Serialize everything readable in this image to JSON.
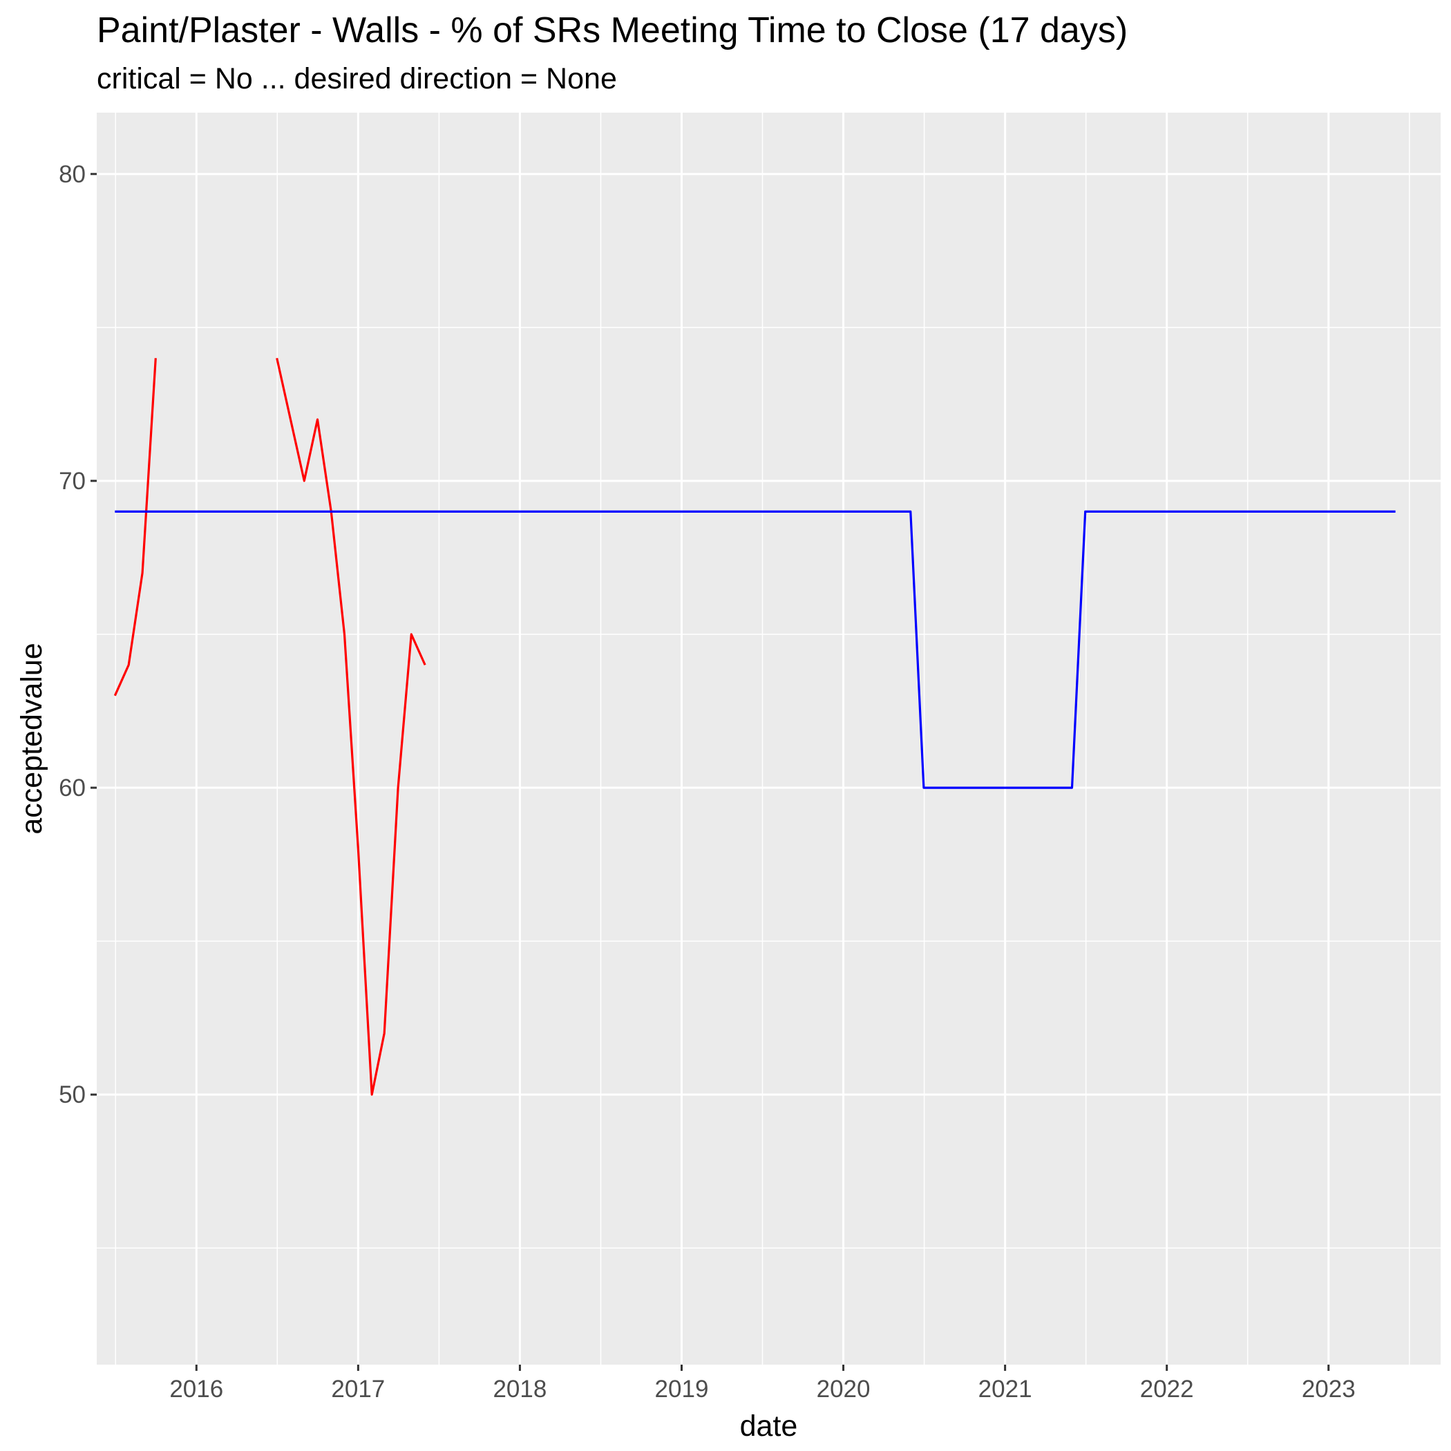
{
  "chart_data": {
    "type": "line",
    "title": "Paint/Plaster - Walls - % of SRs Meeting Time to Close (17 days)",
    "subtitle": "critical = No ... desired direction = None",
    "xlabel": "date",
    "ylabel": "acceptedvalue",
    "x_ticks": [
      "2016",
      "2017",
      "2018",
      "2019",
      "2020",
      "2021",
      "2022",
      "2023"
    ],
    "y_ticks": [
      50,
      60,
      70,
      80
    ],
    "xlim": [
      "2015-05-21",
      "2023-09-11"
    ],
    "ylim": [
      41.2,
      82
    ],
    "grid": true,
    "background": "#EBEBEB",
    "series": [
      {
        "color": "#FF0000",
        "segments": [
          [
            {
              "x": "2015-07-01",
              "y": 63
            },
            {
              "x": "2015-08-01",
              "y": 64
            },
            {
              "x": "2015-09-01",
              "y": 67
            },
            {
              "x": "2015-10-01",
              "y": 74
            }
          ],
          [
            {
              "x": "2016-07-01",
              "y": 74
            },
            {
              "x": "2016-08-01",
              "y": 72
            },
            {
              "x": "2016-09-01",
              "y": 70
            },
            {
              "x": "2016-10-01",
              "y": 72
            },
            {
              "x": "2016-11-01",
              "y": 69
            },
            {
              "x": "2016-12-01",
              "y": 65
            },
            {
              "x": "2017-01-01",
              "y": 58
            },
            {
              "x": "2017-02-01",
              "y": 50
            },
            {
              "x": "2017-03-01",
              "y": 52
            },
            {
              "x": "2017-04-01",
              "y": 60
            },
            {
              "x": "2017-05-01",
              "y": 65
            },
            {
              "x": "2017-06-01",
              "y": 64
            }
          ]
        ]
      },
      {
        "color": "#0000FF",
        "segments": [
          [
            {
              "x": "2015-07-01",
              "y": 69
            },
            {
              "x": "2020-06-01",
              "y": 69
            },
            {
              "x": "2020-07-01",
              "y": 60
            },
            {
              "x": "2021-06-01",
              "y": 60
            },
            {
              "x": "2021-07-01",
              "y": 69
            },
            {
              "x": "2023-06-01",
              "y": 69
            }
          ]
        ]
      }
    ]
  }
}
